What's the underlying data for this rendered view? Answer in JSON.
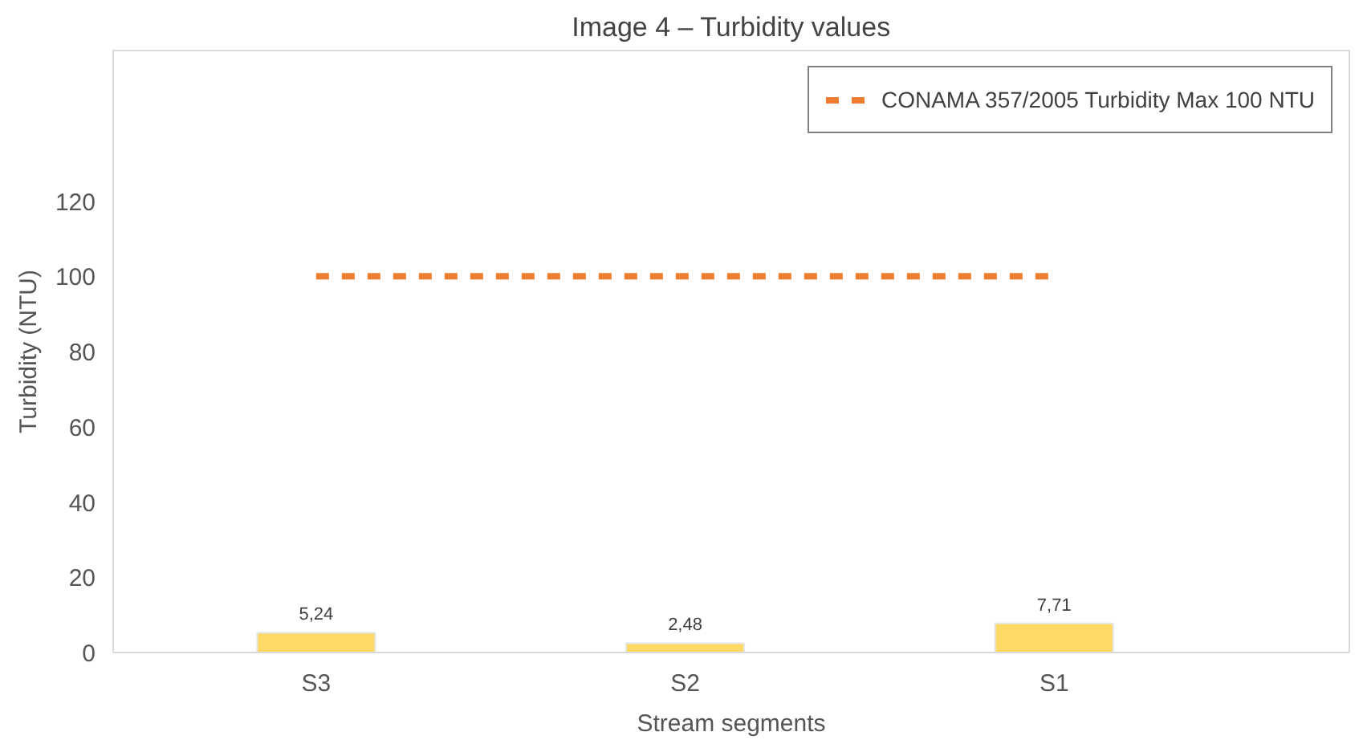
{
  "chart_data": {
    "type": "bar",
    "title": "Image 4 – Turbidity values",
    "xlabel": "Stream segments",
    "ylabel": "Turbidity (NTU)",
    "categories": [
      "S3",
      "S2",
      "S1"
    ],
    "series": [
      {
        "color": "#ffd966",
        "values": [
          5.24,
          2.48,
          7.71
        ],
        "value_labels": [
          "5,24",
          "2,48",
          "7,71"
        ]
      },
      {
        "type": "line",
        "name": "CONAMA 357/2005 Turbidity Max 100 NTU",
        "color": "#ed7d31",
        "values": [
          100,
          100,
          100
        ],
        "line_style": "dashed"
      }
    ],
    "ylim": [
      0,
      160
    ],
    "yticks": [
      0,
      20,
      40,
      60,
      80,
      100,
      120
    ],
    "grid": false,
    "legend": "top right"
  }
}
